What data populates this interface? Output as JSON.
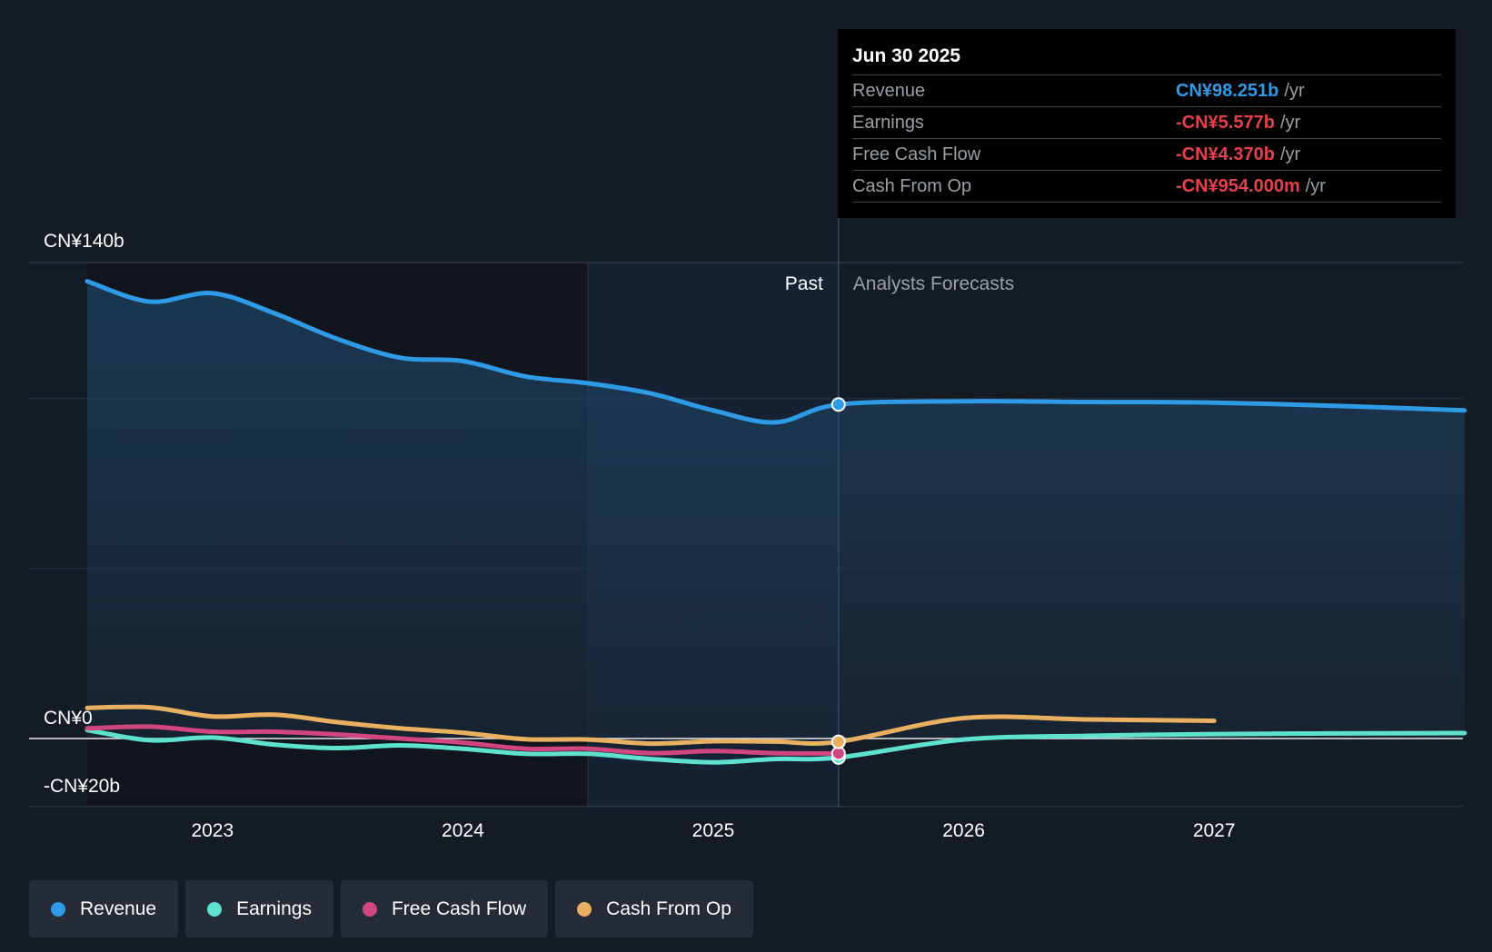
{
  "tooltip": {
    "date": "Jun 30 2025",
    "rows": [
      {
        "label": "Revenue",
        "value": "CN¥98.251b",
        "unit": "/yr",
        "color": "#2f9be6"
      },
      {
        "label": "Earnings",
        "value": "-CN¥5.577b",
        "unit": "/yr",
        "color": "#e8404a"
      },
      {
        "label": "Free Cash Flow",
        "value": "-CN¥4.370b",
        "unit": "/yr",
        "color": "#e8404a"
      },
      {
        "label": "Cash From Op",
        "value": "-CN¥954.000m",
        "unit": "/yr",
        "color": "#e8404a"
      }
    ]
  },
  "legend": [
    {
      "label": "Revenue",
      "color": "#2f9be6"
    },
    {
      "label": "Earnings",
      "color": "#5ee2cf"
    },
    {
      "label": "Free Cash Flow",
      "color": "#d1467f"
    },
    {
      "label": "Cash From Op",
      "color": "#e9b061"
    }
  ],
  "chart_data": {
    "type": "line",
    "title": "",
    "y_labels": [
      "CN¥140b",
      "CN¥0",
      "-CN¥20b"
    ],
    "ylim": [
      -20,
      140
    ],
    "xlim": [
      2022.5,
      2028.0
    ],
    "x_ticks": [
      2023,
      2024,
      2025,
      2026,
      2027
    ],
    "past_label": "Past",
    "forecast_label": "Analysts Forecasts",
    "past_end": 2025.5,
    "highlight_start": 2024.5,
    "series": [
      {
        "name": "Revenue",
        "color": "#2f9be6",
        "fill": true,
        "x": [
          2022.5,
          2022.75,
          2023.0,
          2023.25,
          2023.5,
          2023.75,
          2024.0,
          2024.25,
          2024.5,
          2024.75,
          2025.0,
          2025.25,
          2025.5,
          2026.0,
          2026.5,
          2027.0,
          2027.5,
          2028.0
        ],
        "y": [
          134.5,
          128.5,
          131,
          125,
          117.5,
          112,
          111,
          106.5,
          104.5,
          101.5,
          96.5,
          93,
          98.25,
          99.2,
          99,
          98.8,
          97.8,
          96.5
        ]
      },
      {
        "name": "Earnings",
        "color": "#5ee2cf",
        "x": [
          2022.5,
          2022.75,
          2023.0,
          2023.25,
          2023.5,
          2023.75,
          2024.0,
          2024.25,
          2024.5,
          2024.75,
          2025.0,
          2025.25,
          2025.5,
          2026.0,
          2026.5,
          2027.0,
          2027.5,
          2028.0
        ],
        "y": [
          2.5,
          -0.5,
          0.3,
          -1.8,
          -2.8,
          -2,
          -3,
          -4.5,
          -4.5,
          -6,
          -7,
          -6,
          -5.577,
          -0.3,
          0.8,
          1.3,
          1.5,
          1.6
        ]
      },
      {
        "name": "Free Cash Flow",
        "color": "#d1467f",
        "x": [
          2022.5,
          2022.75,
          2023.0,
          2023.25,
          2023.5,
          2023.75,
          2024.0,
          2024.25,
          2024.5,
          2024.75,
          2025.0,
          2025.25,
          2025.5
        ],
        "y": [
          3,
          3.5,
          2,
          2,
          1.2,
          0,
          -1.2,
          -3,
          -3,
          -4.3,
          -3.7,
          -4.3,
          -4.37
        ]
      },
      {
        "name": "Cash From Op",
        "color": "#e9b061",
        "x": [
          2022.5,
          2022.75,
          2023.0,
          2023.25,
          2023.5,
          2023.75,
          2024.0,
          2024.25,
          2024.5,
          2024.75,
          2025.0,
          2025.25,
          2025.5,
          2026.0,
          2026.5,
          2027.0
        ],
        "y": [
          9,
          9.2,
          6.5,
          7,
          4.8,
          3,
          1.7,
          -0.2,
          -0.3,
          -1.5,
          -0.8,
          -0.9,
          -0.954,
          6,
          5.6,
          5.2
        ]
      }
    ]
  }
}
